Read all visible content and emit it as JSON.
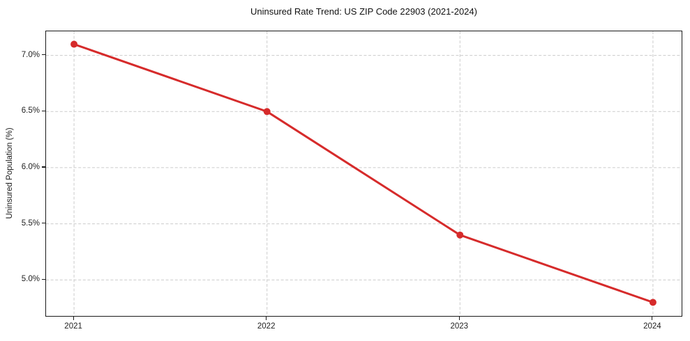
{
  "chart_data": {
    "type": "line",
    "title": "Uninsured Rate Trend: US ZIP Code 22903 (2021-2024)",
    "xlabel": "",
    "ylabel": "Uninsured Population (%)",
    "x": [
      2021,
      2022,
      2023,
      2024
    ],
    "x_tick_labels": [
      "2021",
      "2022",
      "2023",
      "2024"
    ],
    "series": [
      {
        "name": "Uninsured rate",
        "values": [
          7.1,
          6.5,
          5.4,
          4.8
        ],
        "color": "#d62b2b",
        "marker": "circle",
        "line_width": 3,
        "marker_radius": 5
      }
    ],
    "y_ticks": [
      {
        "value": 7.0,
        "label": "7.0%"
      },
      {
        "value": 6.5,
        "label": "6.5%"
      },
      {
        "value": 6.0,
        "label": "6.0%"
      },
      {
        "value": 5.5,
        "label": "5.5%"
      },
      {
        "value": 5.0,
        "label": "5.0%"
      }
    ],
    "xlim": [
      2020.855,
      2024.145
    ],
    "ylim": [
      4.685,
      7.215
    ],
    "grid": "dashed",
    "grid_color": "#cbcbcb",
    "spine_color": "#1a1a1a",
    "legend": "none",
    "background": "#ffffff"
  }
}
